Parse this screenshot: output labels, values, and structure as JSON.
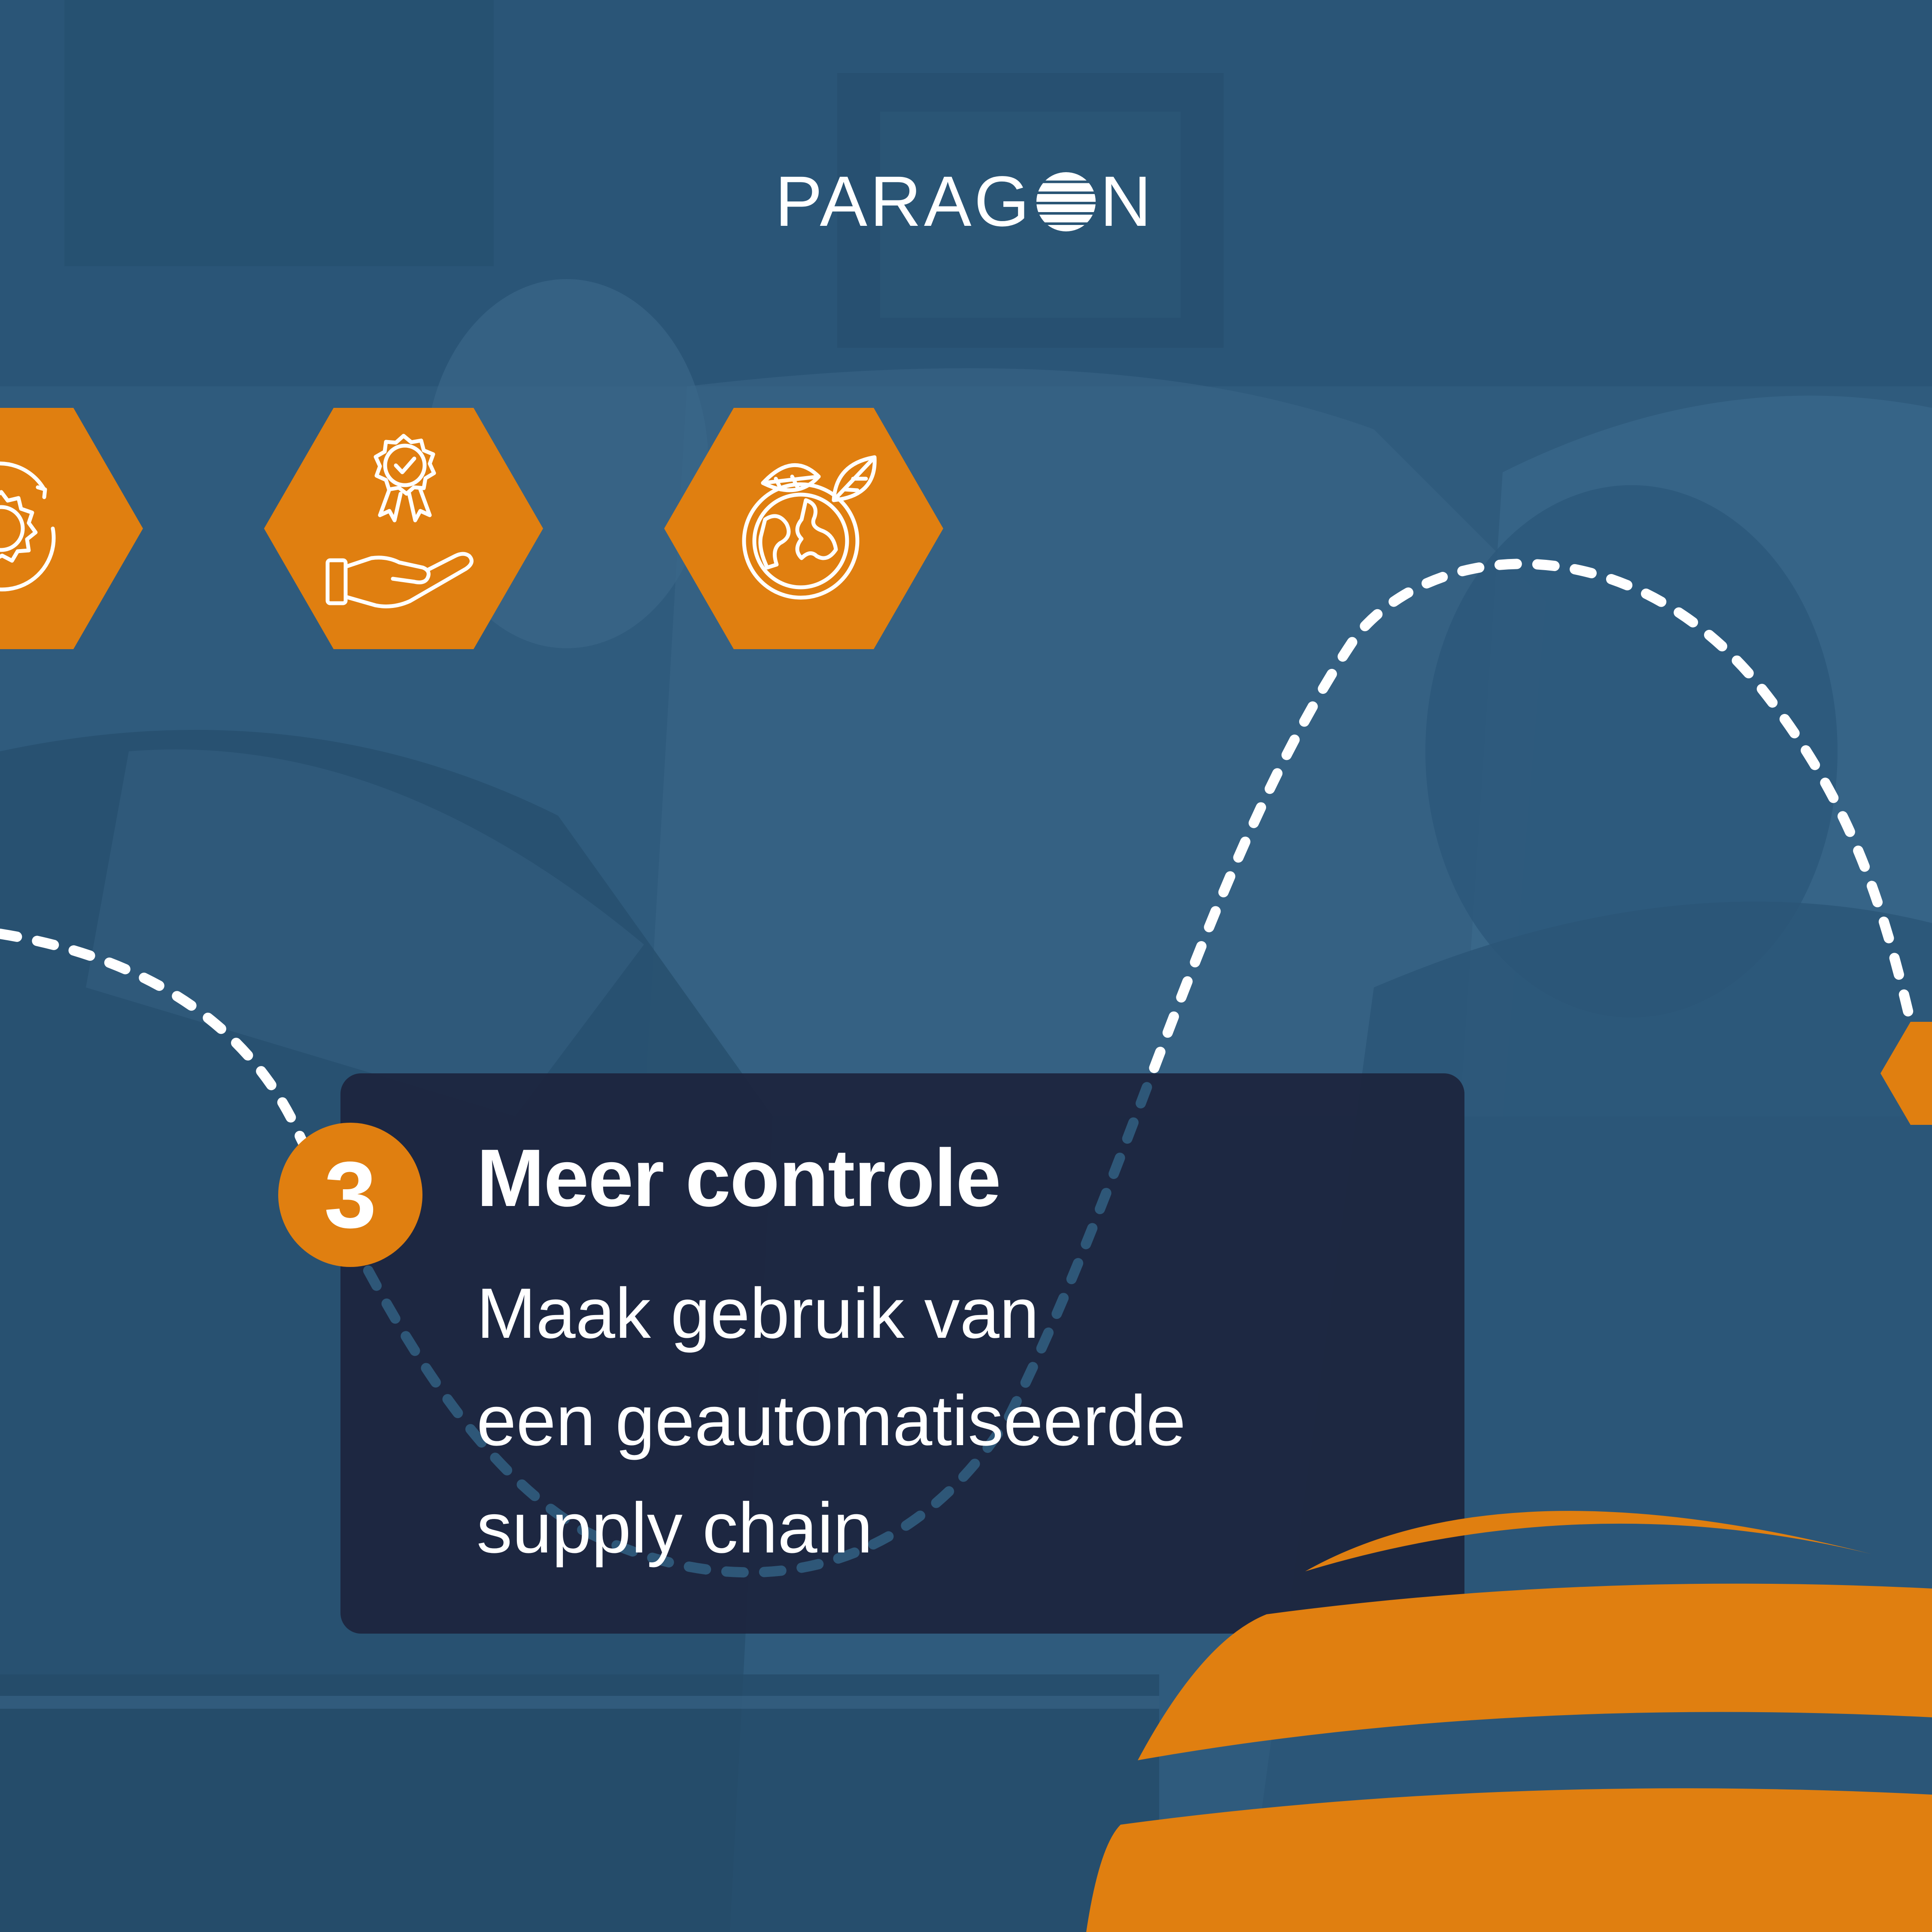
{
  "brand": {
    "logo_before": "PARAG",
    "logo_after": "N",
    "colors": {
      "navy": "#2f5b7d",
      "orange": "#e07f10",
      "card": "#1c243d",
      "white": "#ffffff"
    }
  },
  "hexagons": [
    {
      "icon": "gear-cycle-icon"
    },
    {
      "icon": "award-hand-icon"
    },
    {
      "icon": "globe-leaves-icon"
    },
    {
      "icon": "partial-hexagon"
    }
  ],
  "step": {
    "number": "3",
    "title": "Meer controle",
    "description_lines": [
      "Maak gebruik van",
      "een geautomatiseerde",
      "supply chain"
    ]
  }
}
